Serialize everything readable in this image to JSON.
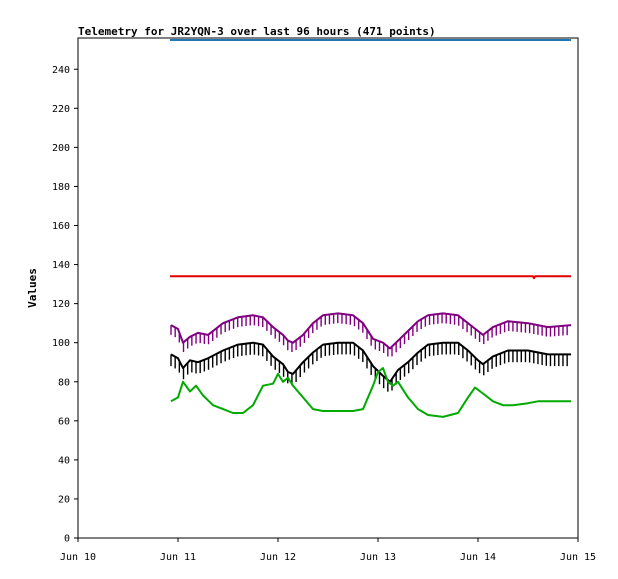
{
  "chart_data": {
    "type": "line",
    "title": "Telemetry for JR2YQN-3 over last 96 hours (471 points)",
    "xlabel": "",
    "ylabel": "Values",
    "x_ticks": [
      "Jun 10",
      "Jun 11",
      "Jun 12",
      "Jun 13",
      "Jun 14",
      "Jun 15"
    ],
    "xlim_days": [
      10,
      15
    ],
    "ylim": [
      0,
      256
    ],
    "y_ticks": [
      0,
      20,
      40,
      60,
      80,
      100,
      120,
      140,
      160,
      180,
      200,
      220,
      240
    ],
    "grid": false,
    "legend": "none",
    "series": [
      {
        "color": "#1f77b4",
        "x": [
          10.92,
          14.93
        ],
        "y": [
          255,
          255
        ]
      },
      {
        "color": "#e00000",
        "x": [
          10.92,
          14.55,
          14.56,
          14.57,
          14.93
        ],
        "y": [
          134,
          134,
          133,
          134,
          134
        ]
      },
      {
        "color": "#800080",
        "spike_down": 5,
        "x": [
          10.93,
          11.0,
          11.05,
          11.12,
          11.2,
          11.3,
          11.45,
          11.6,
          11.75,
          11.85,
          11.95,
          12.05,
          12.1,
          12.15,
          12.25,
          12.35,
          12.45,
          12.6,
          12.75,
          12.85,
          12.95,
          13.05,
          13.12,
          13.2,
          13.3,
          13.4,
          13.5,
          13.65,
          13.8,
          13.9,
          14.0,
          14.05,
          14.15,
          14.3,
          14.5,
          14.7,
          14.93
        ],
        "y": [
          109,
          107,
          100,
          103,
          105,
          104,
          110,
          113,
          114,
          113,
          108,
          104,
          101,
          100,
          104,
          110,
          114,
          115,
          114,
          110,
          102,
          100,
          97,
          101,
          106,
          111,
          114,
          115,
          114,
          110,
          106,
          104,
          108,
          111,
          110,
          108,
          109
        ]
      },
      {
        "color": "#000000",
        "spike_down": 6,
        "x": [
          10.93,
          11.0,
          11.05,
          11.12,
          11.2,
          11.3,
          11.45,
          11.6,
          11.75,
          11.85,
          11.95,
          12.05,
          12.1,
          12.15,
          12.25,
          12.35,
          12.45,
          12.6,
          12.75,
          12.85,
          12.95,
          13.05,
          13.12,
          13.2,
          13.3,
          13.4,
          13.5,
          13.65,
          13.8,
          13.9,
          14.0,
          14.05,
          14.15,
          14.3,
          14.5,
          14.7,
          14.93
        ],
        "y": [
          94,
          92,
          87,
          91,
          90,
          92,
          96,
          99,
          100,
          99,
          93,
          89,
          85,
          84,
          90,
          95,
          99,
          100,
          100,
          96,
          88,
          83,
          80,
          86,
          90,
          95,
          99,
          100,
          100,
          96,
          91,
          89,
          93,
          96,
          96,
          94,
          94
        ]
      },
      {
        "color": "#00aa00",
        "x": [
          10.93,
          11.0,
          11.05,
          11.12,
          11.18,
          11.25,
          11.35,
          11.45,
          11.55,
          11.65,
          11.75,
          11.85,
          11.95,
          12.0,
          12.05,
          12.1,
          12.15,
          12.25,
          12.35,
          12.45,
          12.6,
          12.75,
          12.85,
          12.95,
          13.0,
          13.05,
          13.1,
          13.15,
          13.2,
          13.3,
          13.4,
          13.5,
          13.65,
          13.8,
          13.9,
          13.97,
          14.05,
          14.15,
          14.25,
          14.35,
          14.5,
          14.6,
          14.75,
          14.93
        ],
        "y": [
          70,
          72,
          80,
          75,
          78,
          73,
          68,
          66,
          64,
          64,
          68,
          78,
          79,
          84,
          80,
          82,
          78,
          72,
          66,
          65,
          65,
          65,
          66,
          78,
          85,
          87,
          80,
          78,
          80,
          72,
          66,
          63,
          62,
          64,
          72,
          77,
          74,
          70,
          68,
          68,
          69,
          70,
          70,
          70
        ]
      }
    ]
  }
}
